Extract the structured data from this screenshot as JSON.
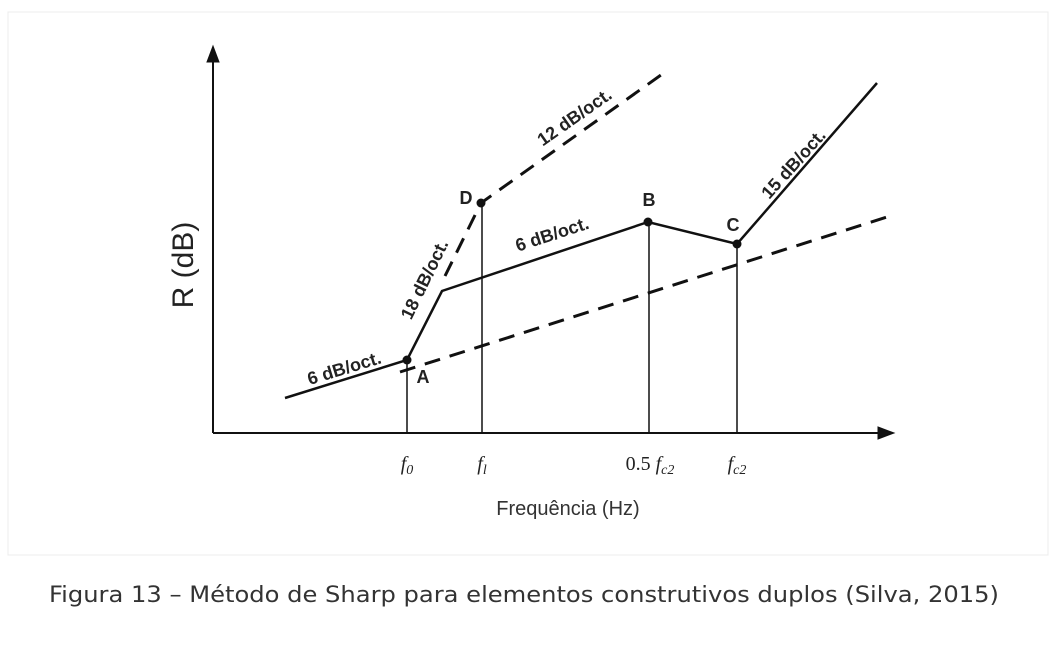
{
  "diagram": {
    "y_axis_label": "R (dB)",
    "x_axis_label": "Frequência (Hz)",
    "x_ticks": [
      {
        "base": "f",
        "sub": "0"
      },
      {
        "base": "f",
        "sub": "l"
      },
      {
        "prefix": "0.5",
        "base": "f",
        "sub": "c2"
      },
      {
        "base": "f",
        "sub": "c2"
      }
    ],
    "points": [
      "A",
      "D",
      "B",
      "C"
    ],
    "slopes": [
      "6 dB/oct.",
      "18 dB/oct.",
      "6 dB/oct.",
      "12 dB/oct.",
      "15 dB/oct."
    ]
  },
  "caption": "Figura 13 – Método de Sharp para elementos construtivos duplos (Silva, 2015)"
}
